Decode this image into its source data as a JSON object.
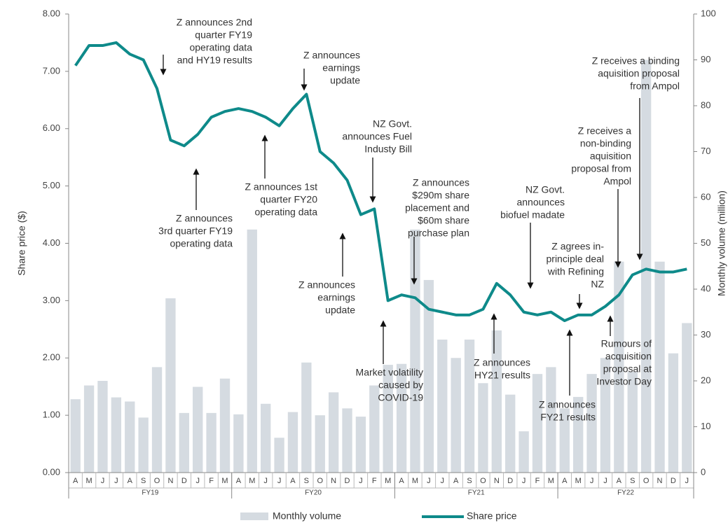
{
  "chart_data": {
    "type": "bar-line",
    "categories": [
      "A",
      "M",
      "J",
      "J",
      "A",
      "S",
      "O",
      "N",
      "D",
      "J",
      "F",
      "M",
      "A",
      "M",
      "J",
      "J",
      "A",
      "S",
      "O",
      "N",
      "D",
      "J",
      "F",
      "M",
      "A",
      "M",
      "J",
      "J",
      "A",
      "S",
      "O",
      "N",
      "D",
      "J",
      "F",
      "M",
      "A",
      "M",
      "J",
      "J",
      "A",
      "S",
      "O",
      "N",
      "D",
      "J"
    ],
    "fiscal_years": [
      "FY19",
      "FY20",
      "FY21",
      "FY22"
    ],
    "series": [
      {
        "name": "Monthly volume",
        "type": "bar",
        "axis": "y2",
        "color": "#d5dbe1",
        "values": [
          16,
          19,
          20,
          16.4,
          15.5,
          12,
          23,
          38,
          13,
          18.7,
          13,
          20.5,
          12.7,
          53,
          15,
          7.6,
          13.2,
          24,
          12.5,
          17.5,
          14,
          12.2,
          19,
          23.5,
          23.7,
          53,
          42,
          29,
          25,
          29,
          19.5,
          31,
          17,
          9,
          21.5,
          23,
          14,
          16.5,
          21.5,
          25,
          46,
          22,
          90,
          46,
          26,
          32.6
        ]
      },
      {
        "name": "Share price",
        "type": "line",
        "axis": "y",
        "color": "#0e8a8a",
        "values": [
          7.1,
          7.45,
          7.45,
          7.5,
          7.3,
          7.2,
          6.7,
          5.8,
          5.7,
          5.9,
          6.2,
          6.3,
          6.35,
          6.3,
          6.2,
          6.05,
          6.35,
          6.6,
          5.6,
          5.4,
          5.1,
          4.5,
          4.6,
          3.0,
          3.1,
          3.05,
          2.85,
          2.8,
          2.75,
          2.75,
          2.85,
          3.3,
          3.1,
          2.8,
          2.75,
          2.8,
          2.65,
          2.75,
          2.75,
          2.9,
          3.1,
          3.45,
          3.55,
          3.5,
          3.5,
          3.55
        ]
      }
    ],
    "ylabel": "Share price ($)",
    "y2label": "Monthly volume (million)",
    "ylim": [
      0,
      8
    ],
    "yticks": [
      {
        "value": 0,
        "label": "0.00"
      },
      {
        "value": 1,
        "label": "1.00"
      },
      {
        "value": 2,
        "label": "2.00"
      },
      {
        "value": 3,
        "label": "3.00"
      },
      {
        "value": 4,
        "label": "4.00"
      },
      {
        "value": 5,
        "label": "5.00"
      },
      {
        "value": 6,
        "label": "6.00"
      },
      {
        "value": 7,
        "label": "7.00"
      },
      {
        "value": 8,
        "label": "8.00"
      }
    ],
    "y2lim": [
      0,
      100
    ],
    "y2ticks": [
      0,
      10,
      20,
      30,
      40,
      50,
      60,
      70,
      80,
      90,
      100
    ],
    "legend": "bottom",
    "annotations": [
      [
        "Z announces 2nd",
        "quarter FY19",
        "operating data",
        "and HY19 results"
      ],
      [
        "Z announces",
        "earnings",
        "update"
      ],
      [
        "Z announces",
        "3rd quarter FY19",
        "operating data"
      ],
      [
        "Z announces 1st",
        "quarter FY20",
        "operating data"
      ],
      [
        "NZ Govt.",
        "announces Fuel",
        "Industy Bill"
      ],
      [
        "Z announces",
        "$290m share",
        "placement and",
        "$60m share",
        "purchase plan"
      ],
      [
        "Z announces",
        "earnings",
        "update"
      ],
      [
        "Market volatility",
        "caused by",
        "COVID-19"
      ],
      [
        "Z announces",
        "HY21 results"
      ],
      [
        "NZ Govt.",
        "announces",
        "biofuel madate"
      ],
      [
        "Z agrees in-",
        "principle deal",
        "with Refining",
        "NZ"
      ],
      [
        "Z announces",
        "FY21 results"
      ],
      [
        "Rumours of",
        "acquisition",
        "proposal at",
        "Investor Day"
      ],
      [
        "Z receives a",
        "non-binding",
        "aquisition",
        "proposal from",
        "Ampol"
      ],
      [
        "Z receives a binding",
        "aquisition proposal",
        "from Ampol"
      ]
    ]
  }
}
